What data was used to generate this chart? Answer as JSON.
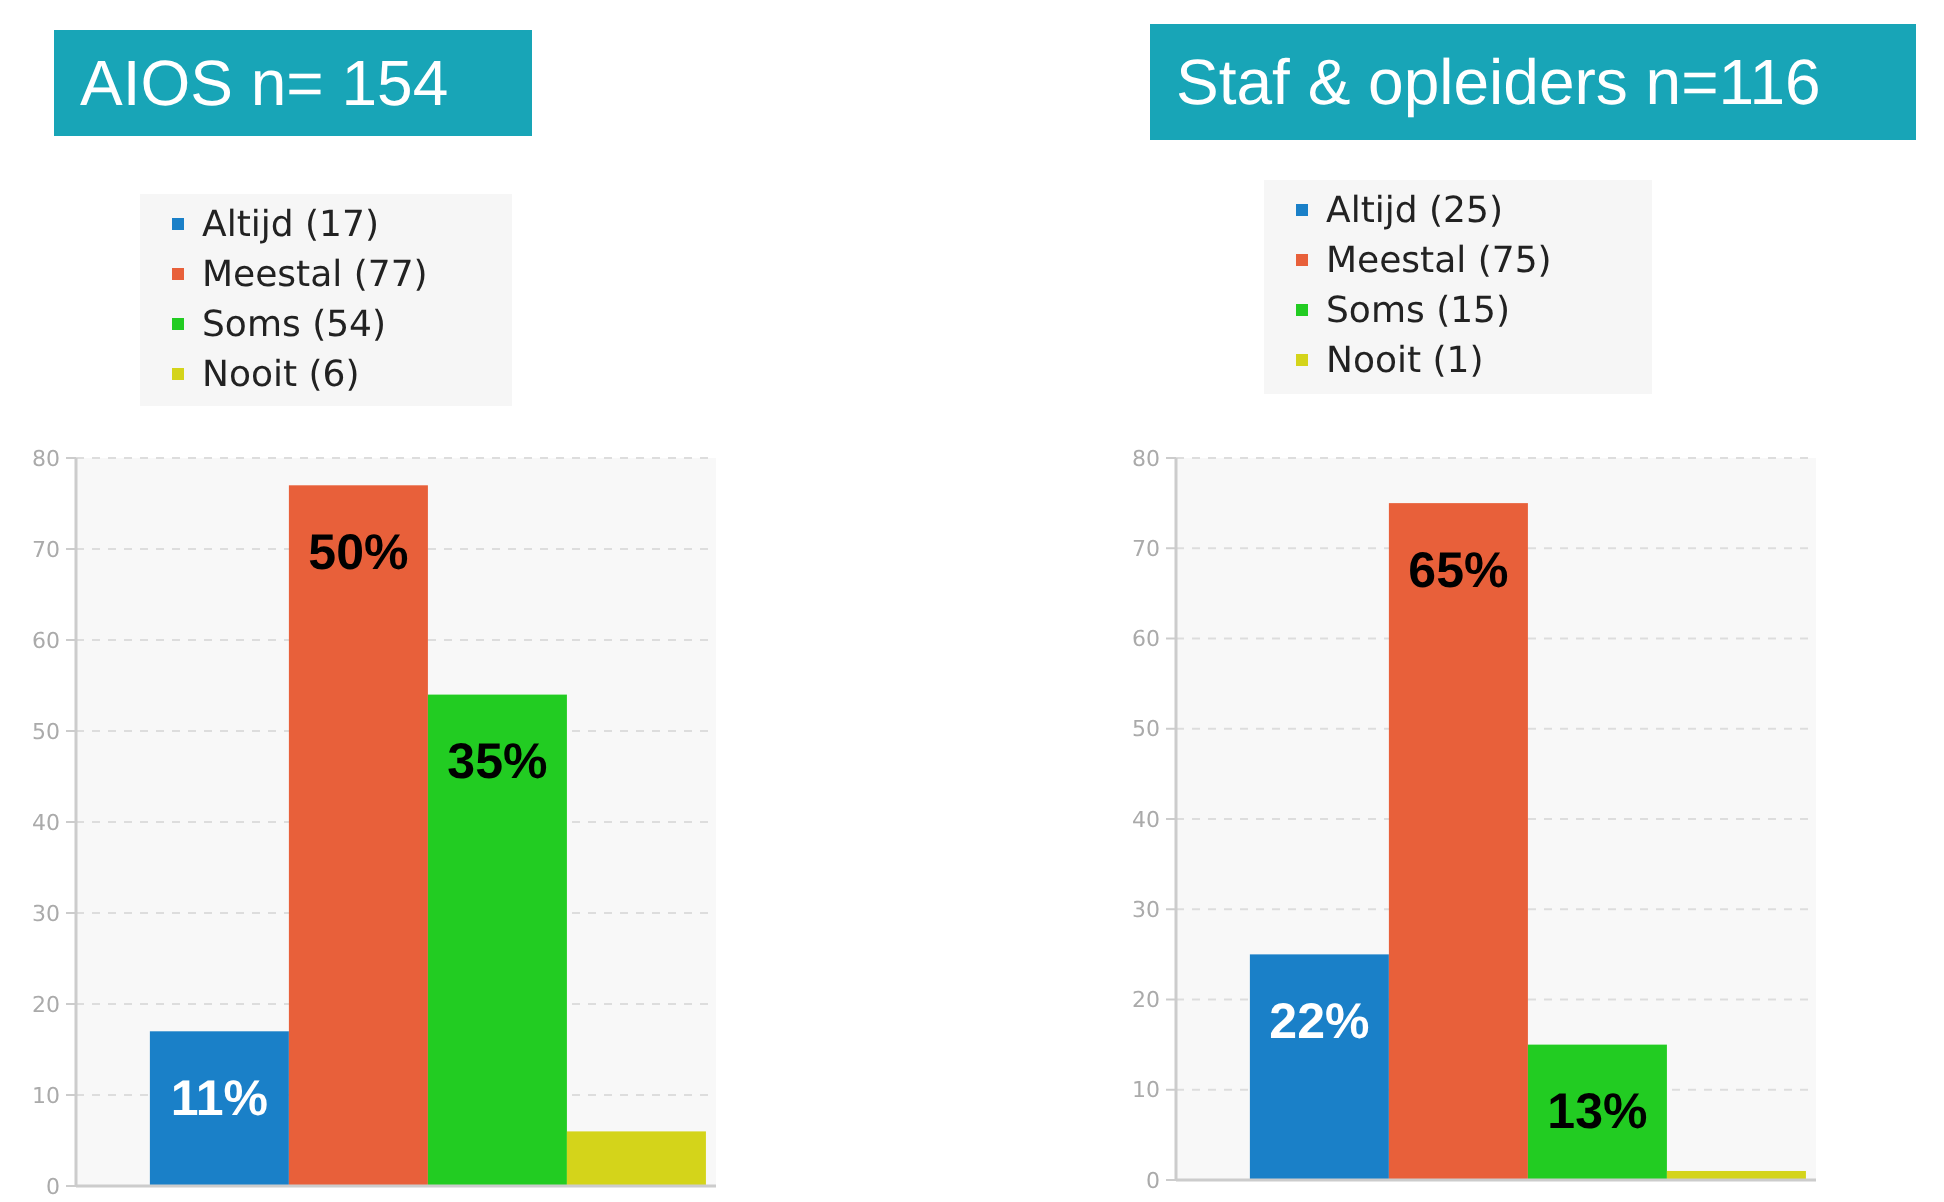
{
  "chart_data": [
    {
      "type": "bar",
      "title": "AIOS n= 154",
      "categories": [
        null
      ],
      "series": [
        {
          "name": "Altijd (17)",
          "color": "#1a80c8",
          "values": [
            17
          ]
        },
        {
          "name": "Meestal (77)",
          "color": "#e8603a",
          "values": [
            77
          ]
        },
        {
          "name": "Soms (54)",
          "color": "#22cc22",
          "values": [
            54
          ]
        },
        {
          "name": "Nooit (6)",
          "color": "#d4d41a",
          "values": [
            6
          ]
        }
      ],
      "annotations": [
        "11%",
        "50%",
        "35%"
      ],
      "ylim": [
        0,
        80
      ],
      "yticks": [
        0,
        10,
        20,
        30,
        40,
        50,
        60,
        70,
        80
      ],
      "grid": "y",
      "legend": "top"
    },
    {
      "type": "bar",
      "title": "Staf & opleiders n=116",
      "categories": [
        null
      ],
      "series": [
        {
          "name": "Altijd (25)",
          "color": "#1a80c8",
          "values": [
            25
          ]
        },
        {
          "name": "Meestal (75)",
          "color": "#e8603a",
          "values": [
            75
          ]
        },
        {
          "name": "Soms (15)",
          "color": "#22cc22",
          "values": [
            15
          ]
        },
        {
          "name": "Nooit (1)",
          "color": "#d4d41a",
          "values": [
            1
          ]
        }
      ],
      "annotations": [
        "22%",
        "65%",
        "13%"
      ],
      "ylim": [
        0,
        80
      ],
      "yticks": [
        0,
        10,
        20,
        30,
        40,
        50,
        60,
        70,
        80
      ],
      "grid": "y",
      "legend": "top"
    }
  ]
}
